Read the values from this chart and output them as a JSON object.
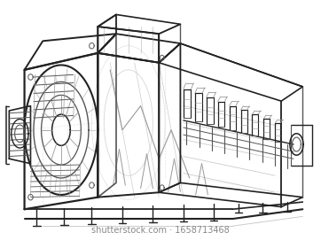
{
  "bg_color": "#ffffff",
  "dark": "#222222",
  "medium": "#555555",
  "light": "#999999",
  "vlight": "#cccccc",
  "watermark_text": "shutterstock.com · 1658713468",
  "watermark_color": "#888888",
  "watermark_fontsize": 7,
  "figsize": [
    3.62,
    2.8
  ],
  "dpi": 100
}
